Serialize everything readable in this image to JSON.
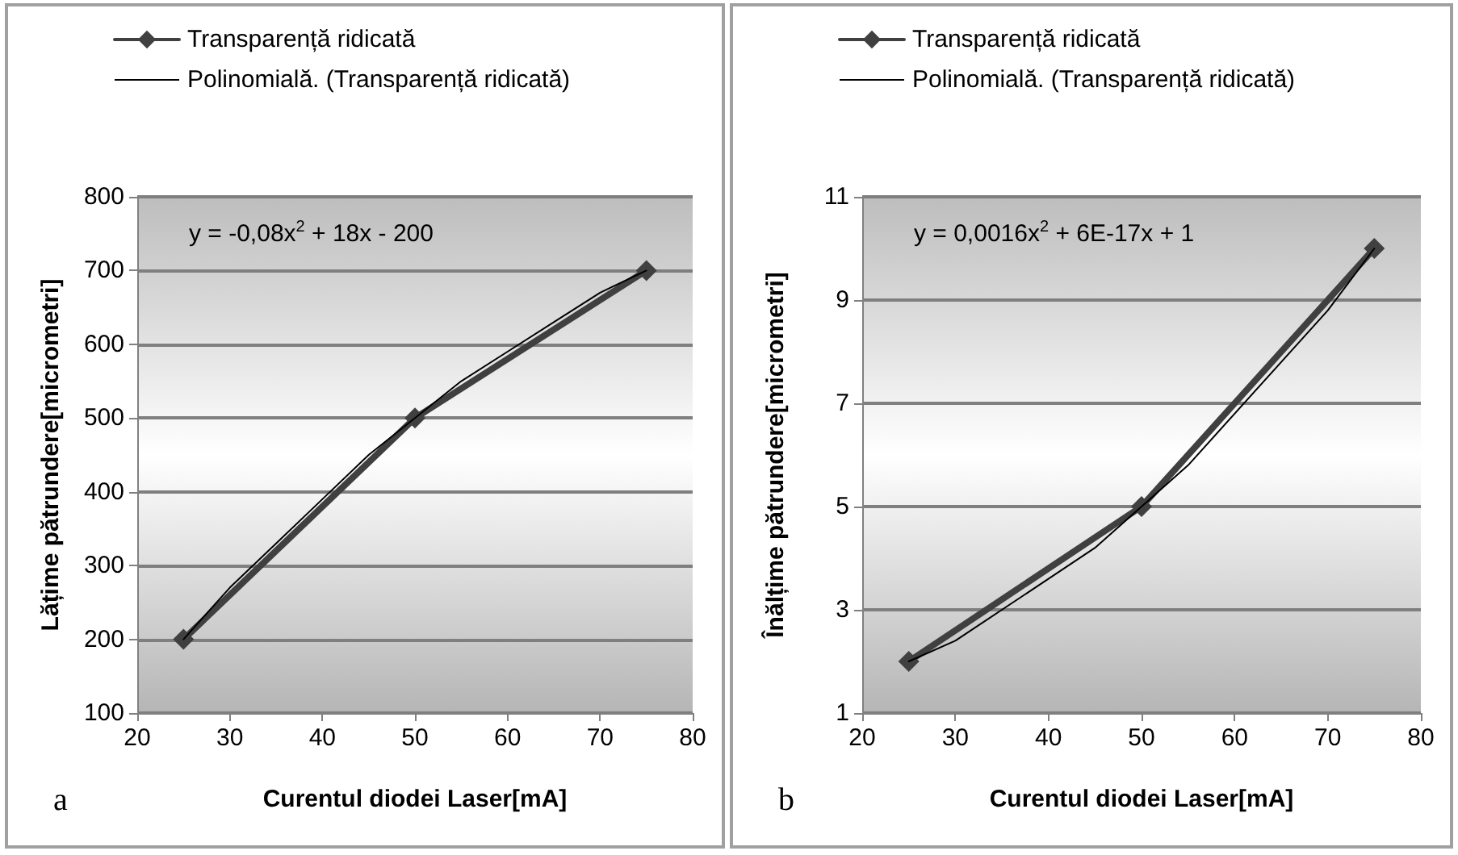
{
  "chart_data": [
    {
      "type": "line",
      "xlabel": "Curentul diodei Laser[mA]",
      "ylabel": "Lățime pătrundere[micrometri]",
      "annotations": [
        "y = -0,08x$^{2}$ + 18x - 200",
        "a"
      ],
      "series": [
        {
          "name": "Transparență ridicată",
          "color": "#404040",
          "x": [
            25,
            50,
            75
          ],
          "values": [
            200,
            500,
            700
          ],
          "marker": "diamond"
        },
        {
          "name": "Polinomială. (Transparență ridicată)",
          "color": "#000000",
          "x": [
            25,
            30,
            35,
            40,
            45,
            50,
            55,
            60,
            65,
            70,
            75
          ],
          "values": [
            200,
            270,
            330,
            390,
            450,
            500,
            550,
            590,
            630,
            670,
            700
          ],
          "marker": "none"
        }
      ],
      "xlim": [
        20,
        80
      ],
      "xticks": [
        20,
        30,
        40,
        50,
        60,
        70,
        80
      ],
      "ylim": [
        100,
        800
      ],
      "yticks": [
        100,
        200,
        300,
        400,
        500,
        600,
        700,
        800
      ],
      "grid": "y",
      "legend": "top",
      "line_style": "solid"
    },
    {
      "type": "line",
      "xlabel": "Curentul diodei Laser[mA]",
      "ylabel": "Înălțime pătrundere[micrometri]",
      "annotations": [
        "y = 0,0016x$^{2}$ + 6E-17x + 1",
        "b"
      ],
      "series": [
        {
          "name": "Transparență ridicată",
          "color": "#404040",
          "x": [
            25,
            50,
            75
          ],
          "values": [
            2,
            5,
            10
          ],
          "marker": "diamond"
        },
        {
          "name": "Polinomială. (Transparență ridicată)",
          "color": "#000000",
          "x": [
            25,
            30,
            35,
            40,
            45,
            50,
            55,
            60,
            65,
            70,
            75
          ],
          "values": [
            2,
            2.4,
            3,
            3.6,
            4.2,
            5,
            5.8,
            6.8,
            7.8,
            8.8,
            10
          ],
          "marker": "none"
        }
      ],
      "xlim": [
        20,
        80
      ],
      "xticks": [
        20,
        30,
        40,
        50,
        60,
        70,
        80
      ],
      "ylim": [
        1,
        11
      ],
      "yticks": [
        1,
        3,
        5,
        7,
        9,
        11
      ],
      "grid": "y",
      "legend": "top",
      "line_style": "solid"
    }
  ]
}
